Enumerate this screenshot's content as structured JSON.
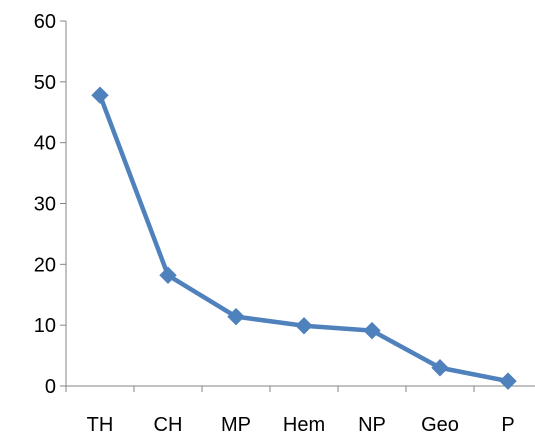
{
  "chart_data": {
    "type": "line",
    "title": "",
    "xlabel": "",
    "ylabel": "",
    "categories": [
      "TH",
      "CH",
      "MP",
      "Hem",
      "NP",
      "Geo",
      "P"
    ],
    "series": [
      {
        "values": [
          47.8,
          18.2,
          11.4,
          9.9,
          9.1,
          3.0,
          0.8
        ]
      }
    ],
    "ylim": [
      0,
      60
    ],
    "yticks": [
      "0",
      "10",
      "20",
      "30",
      "40",
      "50",
      "60"
    ],
    "grid": false,
    "legend": "none",
    "marker": "diamond",
    "line_color": "#4F81BD",
    "axis_color": "#868686"
  }
}
